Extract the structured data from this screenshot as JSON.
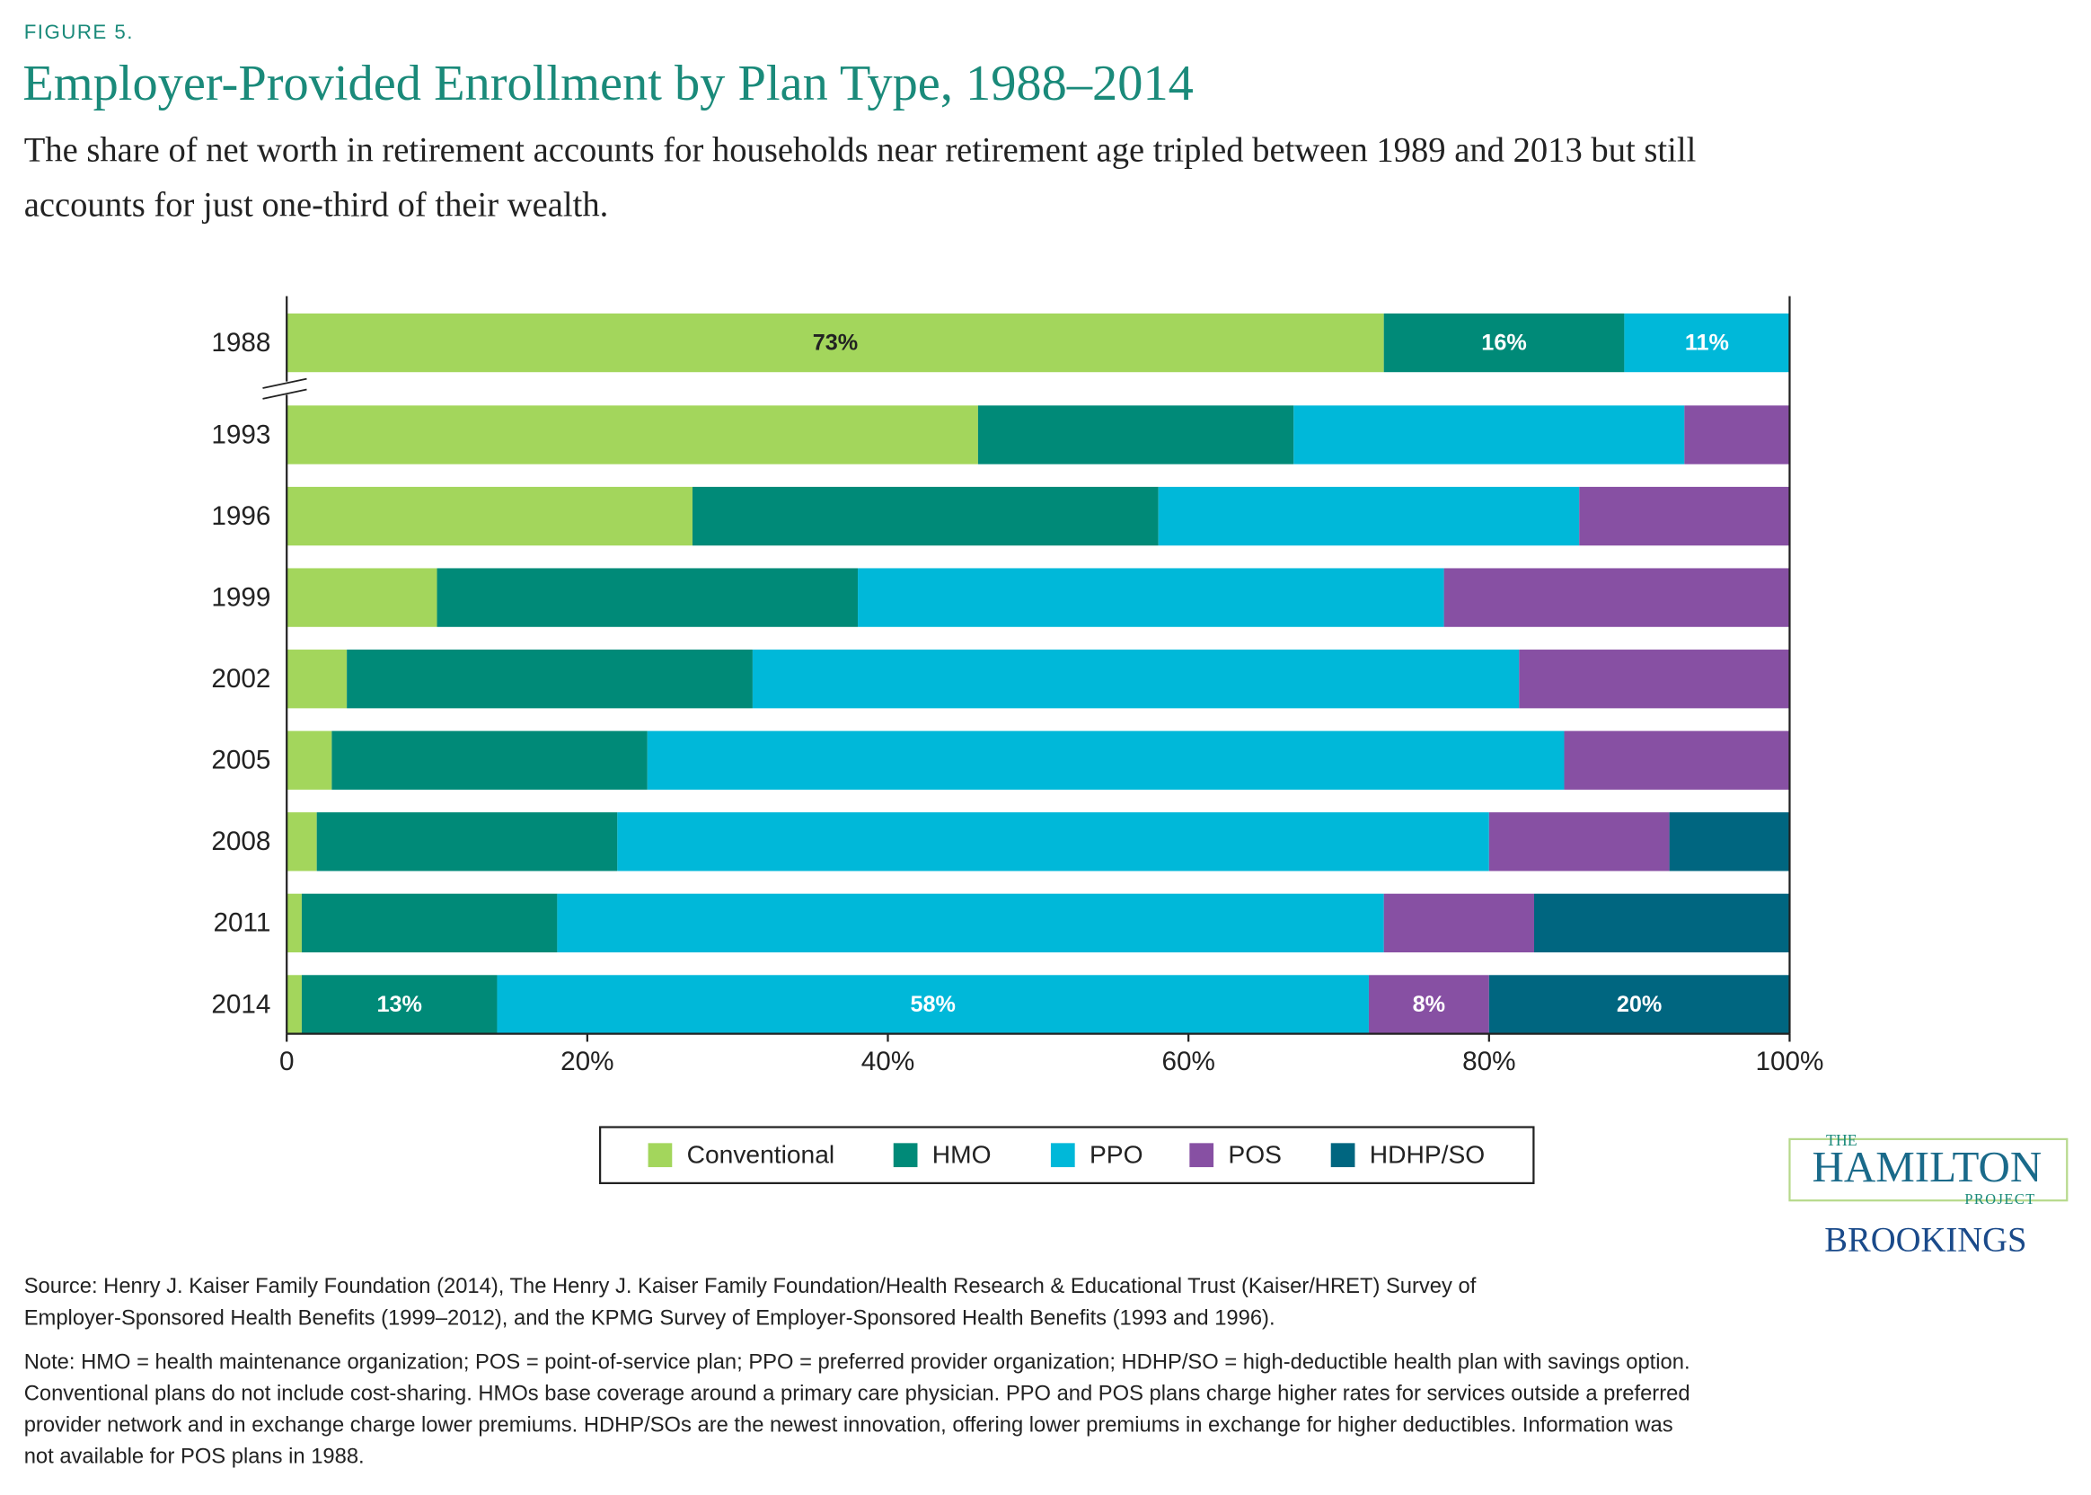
{
  "chart_data": {
    "type": "bar",
    "orientation": "horizontal",
    "stacked": true,
    "figure_label": "FIGURE 5.",
    "title": "Employer-Provided Enrollment by Plan Type, 1988–2014",
    "subtitle": [
      "The share of net worth in retirement accounts for households near retirement age tripled between 1989 and 2013 but still",
      "accounts for just one-third of their wealth."
    ],
    "categories": [
      "1988",
      "1993",
      "1996",
      "1999",
      "2002",
      "2005",
      "2008",
      "2011",
      "2014"
    ],
    "series": [
      {
        "name": "Conventional",
        "color": "#a3d65c",
        "values": [
          73,
          46,
          27,
          10,
          4,
          3,
          2,
          1,
          1
        ],
        "value_labels": [
          "73%",
          null,
          null,
          null,
          null,
          null,
          null,
          null,
          null
        ]
      },
      {
        "name": "HMO",
        "color": "#008a78",
        "values": [
          16,
          21,
          31,
          28,
          27,
          21,
          20,
          17,
          13
        ],
        "value_labels": [
          "16%",
          null,
          null,
          null,
          null,
          null,
          null,
          null,
          "13%"
        ]
      },
      {
        "name": "PPO",
        "color": "#00b8d9",
        "values": [
          11,
          26,
          28,
          39,
          51,
          61,
          58,
          55,
          58
        ],
        "value_labels": [
          "11%",
          null,
          null,
          null,
          null,
          null,
          null,
          null,
          "58%"
        ]
      },
      {
        "name": "POS",
        "color": "#8750a3",
        "values": [
          null,
          7,
          14,
          23,
          18,
          15,
          12,
          10,
          8
        ],
        "value_labels": [
          null,
          null,
          null,
          null,
          null,
          null,
          null,
          null,
          "8%"
        ]
      },
      {
        "name": "HDHP/SO",
        "color": "#006680",
        "values": [
          null,
          null,
          null,
          null,
          null,
          null,
          8,
          17,
          20
        ],
        "value_labels": [
          null,
          null,
          null,
          null,
          null,
          null,
          null,
          null,
          "20%"
        ]
      }
    ],
    "xlim": [
      0,
      100
    ],
    "xticks": [
      0,
      {
        "value": 20,
        "label": "20%"
      },
      {
        "value": 40,
        "label": "40%"
      },
      {
        "value": 60,
        "label": "60%"
      },
      {
        "value": 80,
        "label": "80%"
      },
      {
        "value": 100,
        "label": "100%"
      }
    ],
    "legend": "bottom",
    "logo": {
      "the": "THE",
      "name": "HAMILTON",
      "project": "PROJECT",
      "org": "BROOKINGS"
    },
    "source": [
      "Source: Henry J. Kaiser Family Foundation (2014), The Henry J. Kaiser Family Foundation/Health Research & Educational Trust (Kaiser/HRET) Survey of",
      "Employer-Sponsored Health Benefits (1999–2012), and the KPMG Survey of Employer-Sponsored Health Benefits (1993 and 1996)."
    ],
    "note": [
      "Note: HMO = health maintenance organization; POS = point-of-service plan; PPO = preferred provider organization; HDHP/SO = high-deductible health plan with savings option.",
      "Conventional plans do not include cost-sharing. HMOs base coverage around a primary care physician. PPO and POS plans charge higher rates for services outside a preferred",
      "provider network and in exchange charge lower premiums. HDHP/SOs are the newest innovation, offering lower premiums in exchange for higher deductibles. Information was",
      "not available for POS plans in 1988."
    ]
  }
}
